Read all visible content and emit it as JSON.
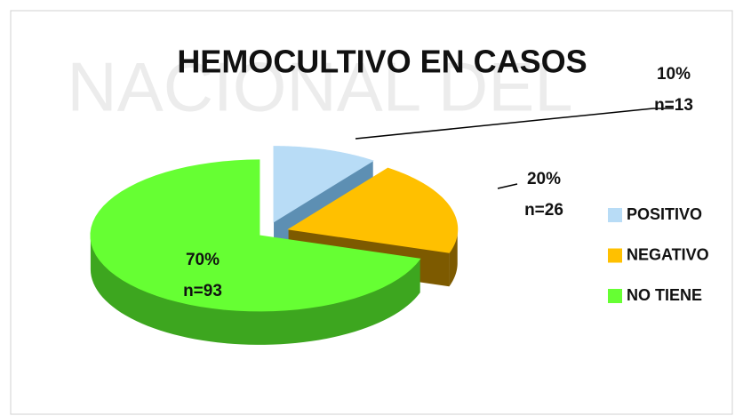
{
  "chart_data": {
    "type": "pie3d",
    "title": "HEMOCULTIVO EN CASOS",
    "watermark": "NACIONAL DEL",
    "categories": [
      "POSITIVO",
      "NEGATIVO",
      "NO TIENE"
    ],
    "values": [
      10,
      20,
      70
    ],
    "value_labels": [
      "10%",
      "20%",
      "70%"
    ],
    "annotations": [
      "n=13",
      "n=26",
      "n=93"
    ],
    "colors": [
      "#b8dcf6",
      "#ffc000",
      "#66ff33"
    ],
    "side_colors": [
      "#5d8fb3",
      "#7d5a00",
      "#3da61f"
    ],
    "legend": "right"
  }
}
